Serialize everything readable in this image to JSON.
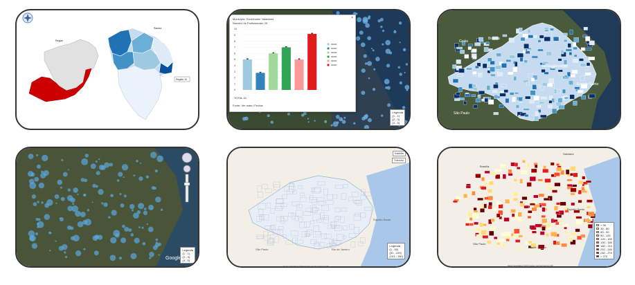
{
  "panels": {
    "comparison_map": {
      "left_label": "Regiao",
      "right_label": "Sandra",
      "tooltip": "Região 10"
    },
    "bar_chart_popup": {
      "line1": "Município: Governador Valadares",
      "line2": "Número de Profissionais: 29",
      "footer": "Fonte: Ver mais / Fechar",
      "footer_link": "Ver mais",
      "total": "TOTAL:31",
      "legend_title": "Legenda",
      "legend_items": [
        "(1 - 1)",
        "(2 - 3)",
        "(4 - 5)"
      ],
      "chart_data": {
        "type": "bar",
        "categories": [
          "1",
          "2",
          "3",
          "4",
          "5",
          "6"
        ],
        "values": [
          5,
          2.8,
          6,
          7,
          5,
          9.2
        ],
        "ylim": [
          0,
          10
        ],
        "yticks": [
          "10",
          "9",
          "8",
          "7",
          "6",
          "5",
          "4",
          "3",
          "2",
          "1",
          "0"
        ],
        "colors": [
          "#9ecae1",
          "#3182bd",
          "#a1d99b",
          "#31a354",
          "#fb9a99",
          "#e31a1c"
        ],
        "legend_labels": [
          "00000",
          "00000",
          "00000",
          "00000",
          "00000",
          "00000"
        ]
      }
    },
    "choropleth_satellite": {
      "labels": [
        "Goiás",
        "Brasília",
        "Minas Gerais",
        "Espírito Santo",
        "São Paulo"
      ]
    },
    "bubble_satellite": {
      "legend_title": "Legenda",
      "legend_items": [
        "(1 - 1)",
        "(2 - 3)",
        "(4 - 5)"
      ],
      "google": "Google"
    },
    "roadmap_outline": {
      "ctrl_top": "Satélite",
      "ctrl_bottom": "Trânsito",
      "labels": [
        "Espírito Santo",
        "São Paulo",
        "Rio de Janeiro"
      ],
      "legend_title": "Legenda",
      "legend_items": [
        "(1 - 50)",
        "(51 - 100)",
        "(101 - 150)"
      ],
      "attribution": "Dados cartográficos ©2013 Google, Inav/Geosistemas SRL"
    },
    "heatmap_roadmap": {
      "labels": [
        "Brasília",
        "Salvador",
        "Espírito Santo",
        "São Paulo",
        "Rio de Janeiro"
      ],
      "legend_items": [
        "< 30",
        "30 - 60",
        "60 - 90",
        "90 - 120",
        "120 - 150",
        "150 - 180",
        "180 - 210",
        "210 - 240",
        "240 - 270",
        "> 270"
      ],
      "legend_colors": [
        "#ffffcc",
        "#ffeda0",
        "#fed976",
        "#feb24c",
        "#fd8d3c",
        "#fc4e2a",
        "#e31a1c",
        "#bd0026",
        "#990000",
        "#660000"
      ],
      "attribution": "Dados cartográficos ©2014 Google, Inav/Geosistemas SRL"
    }
  }
}
